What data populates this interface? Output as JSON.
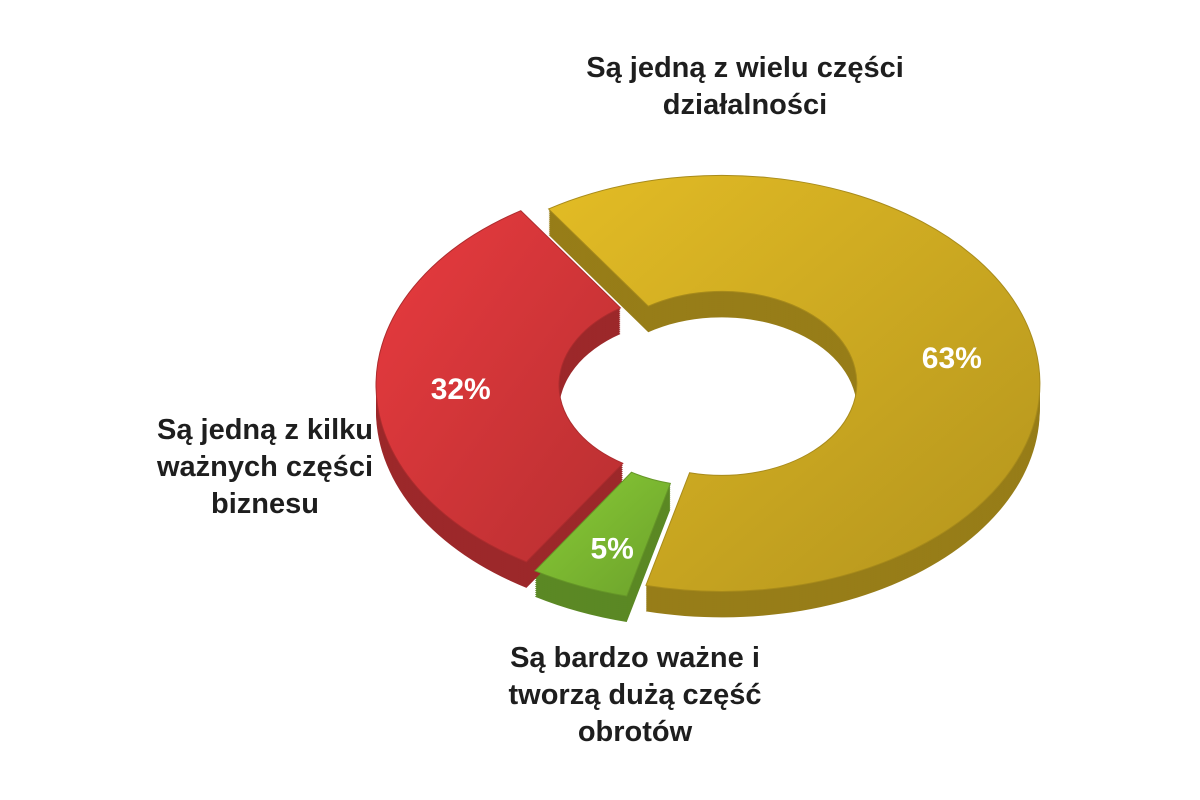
{
  "chart_data": {
    "type": "pie",
    "donut": true,
    "categories": [
      "Są jedną z wielu części działalności",
      "Są bardzo ważne i tworzą dużą część obrotów",
      "Są jedną z kilku ważnych części biznesu"
    ],
    "values": [
      63,
      5,
      32
    ],
    "value_labels": [
      "63%",
      "5%",
      "32%"
    ],
    "colors": [
      "#d2ae22",
      "#7fbd32",
      "#d8373a"
    ]
  }
}
